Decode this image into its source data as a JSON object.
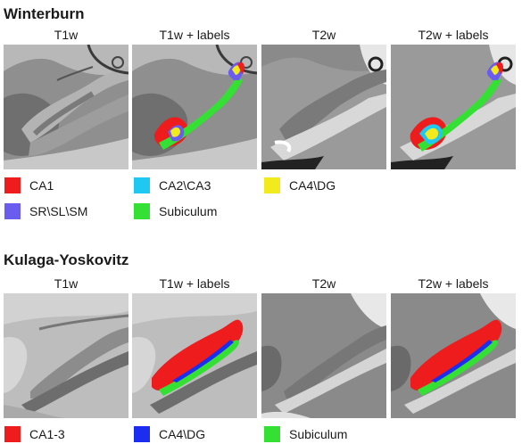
{
  "sections": [
    {
      "title": "Winterburn",
      "columns": [
        "T1w",
        "T1w + labels",
        "T2w",
        "T2w + labels"
      ],
      "legend": [
        {
          "label": "CA1",
          "color": "#ee1c1c"
        },
        {
          "label": "CA2\\CA3",
          "color": "#1ec8f0"
        },
        {
          "label": "CA4\\DG",
          "color": "#f2ea1c"
        },
        {
          "label": "SR\\SL\\SM",
          "color": "#6b5cf0"
        },
        {
          "label": "Subiculum",
          "color": "#33e033"
        }
      ]
    },
    {
      "title": "Kulaga-Yoskovitz",
      "columns": [
        "T1w",
        "T1w + labels",
        "T2w",
        "T2w + labels"
      ],
      "legend": [
        {
          "label": "CA1-3",
          "color": "#ee1c1c"
        },
        {
          "label": "CA4\\DG",
          "color": "#1c2cf0"
        },
        {
          "label": "Subiculum",
          "color": "#33e033"
        }
      ]
    }
  ]
}
